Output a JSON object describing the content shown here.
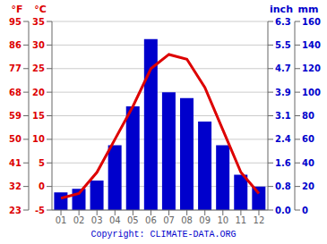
{
  "chart_data": {
    "type": "bar",
    "categories": [
      "01",
      "02",
      "03",
      "04",
      "05",
      "06",
      "07",
      "08",
      "09",
      "10",
      "11",
      "12"
    ],
    "series": [
      {
        "type": "bar",
        "axis": "y2",
        "color": "#0000cc",
        "values": [
          15,
          18,
          25,
          55,
          88,
          145,
          100,
          95,
          75,
          55,
          30,
          20
        ]
      },
      {
        "type": "line",
        "color": "#dd0000",
        "values": [
          -2.5,
          -1.5,
          3,
          10,
          17,
          25,
          28,
          27,
          21,
          12,
          3,
          -1.5
        ]
      }
    ],
    "ylabel": "°C",
    "ylim": [
      -5,
      35
    ],
    "yticks": [
      -5,
      0,
      5,
      10,
      15,
      20,
      25,
      30,
      35
    ],
    "ylabel_f": "°F",
    "yticks_f": [
      {
        "value": -5,
        "label": "23"
      },
      {
        "value": 0,
        "label": "32"
      },
      {
        "value": 5,
        "label": "41"
      },
      {
        "value": 10,
        "label": "50"
      },
      {
        "value": 15,
        "label": "59"
      },
      {
        "value": 20,
        "label": "68"
      },
      {
        "value": 25,
        "label": "77"
      },
      {
        "value": 30,
        "label": "86"
      },
      {
        "value": 35,
        "label": "95"
      }
    ],
    "y2label": "mm",
    "y2lim": [
      0,
      160
    ],
    "y2ticks": [
      0,
      20,
      40,
      60,
      80,
      100,
      120,
      140,
      160
    ],
    "y2label_inch": "inch",
    "y2ticks_inch": [
      {
        "value": 0,
        "label": "0.0"
      },
      {
        "value": 20,
        "label": "0.8"
      },
      {
        "value": 40,
        "label": "1.6"
      },
      {
        "value": 60,
        "label": "2.4"
      },
      {
        "value": 80,
        "label": "3.1"
      },
      {
        "value": 100,
        "label": "3.9"
      },
      {
        "value": 120,
        "label": "4.7"
      },
      {
        "value": 140,
        "label": "5.5"
      },
      {
        "value": 160,
        "label": "6.3"
      }
    ],
    "grid": true,
    "annotation": "Copyright: CLIMATE-DATA.ORG"
  }
}
